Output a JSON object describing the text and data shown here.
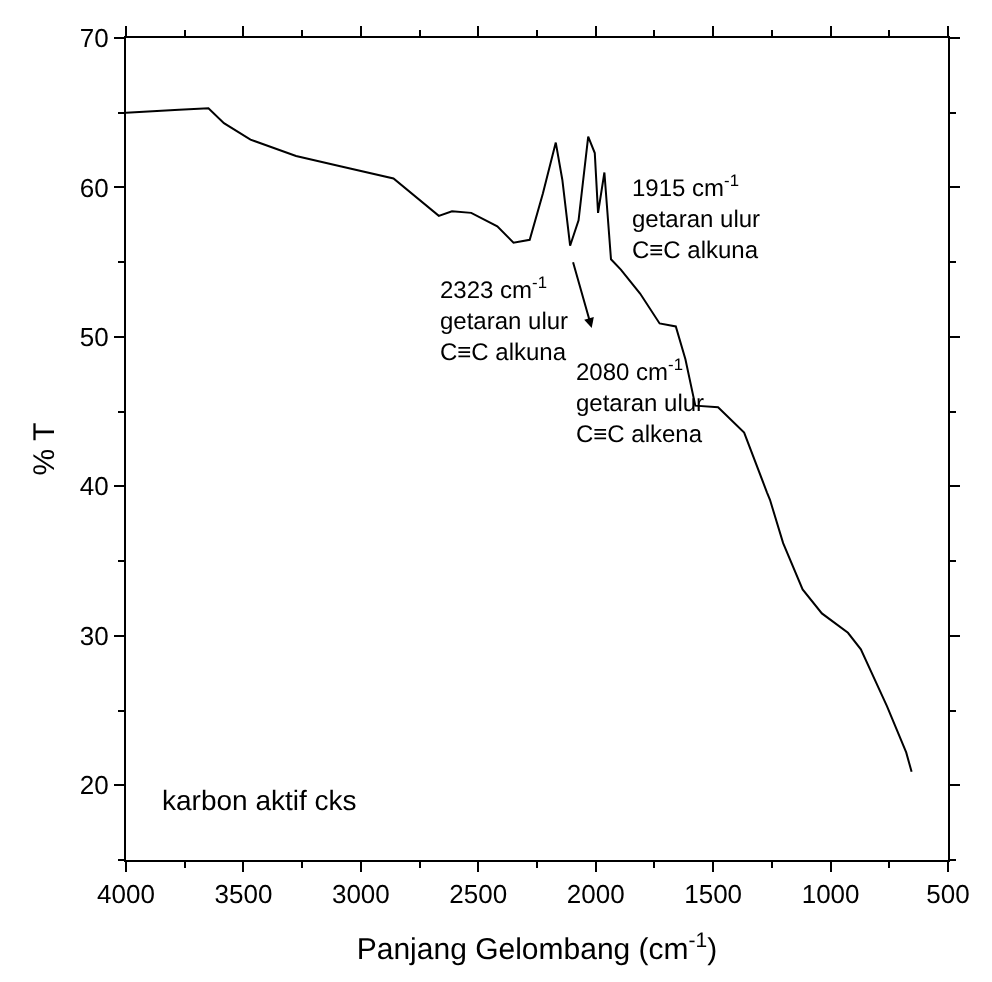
{
  "chart_data": {
    "type": "line",
    "xlabel": "Panjang Gelombang (cm$^{-1}$)",
    "ylabel": "% T",
    "x": [
      4000,
      3774,
      3649,
      3583,
      3470,
      3276,
      3083,
      2861,
      2668,
      2612,
      2530,
      2419,
      2350,
      2281,
      2225,
      2170,
      2142,
      2109,
      2073,
      2032,
      2004,
      1990,
      1963,
      1935,
      1893,
      1811,
      1728,
      1659,
      1618,
      1576,
      1479,
      1368,
      1271,
      1258,
      1202,
      1119,
      1037,
      926,
      871,
      760,
      678,
      655
    ],
    "series": [
      {
        "color": "#000000",
        "values": [
          65.0,
          65.2,
          65.3,
          64.3,
          63.2,
          62.1,
          61.4,
          60.6,
          58.1,
          58.4,
          58.3,
          57.4,
          56.3,
          56.5,
          59.6,
          63.0,
          60.5,
          56.1,
          57.8,
          63.4,
          62.3,
          58.3,
          61.0,
          55.2,
          54.5,
          52.9,
          50.9,
          50.7,
          48.5,
          45.4,
          45.3,
          43.6,
          39.6,
          39.1,
          36.2,
          33.1,
          31.5,
          30.2,
          29.1,
          25.3,
          22.2,
          20.9
        ]
      }
    ],
    "xlim": [
      4000,
      500
    ],
    "xticks": [
      4000,
      3500,
      3000,
      2500,
      2000,
      1500,
      1000,
      500
    ],
    "ylim": [
      15,
      70
    ],
    "yticks": [
      20,
      30,
      40,
      50,
      60,
      70
    ],
    "annotations": [
      "1915 cm$^{-1}$\ngetaran ulur\nC≡C alkuna",
      "2323 cm$^{-1}$\ngetaran ulur\nC≡C alkuna",
      "2080 cm$^{-1}$\ngetaran ulur\nC≡C alkena",
      "karbon aktif cks"
    ],
    "marker": "none",
    "line_style": "solid"
  }
}
